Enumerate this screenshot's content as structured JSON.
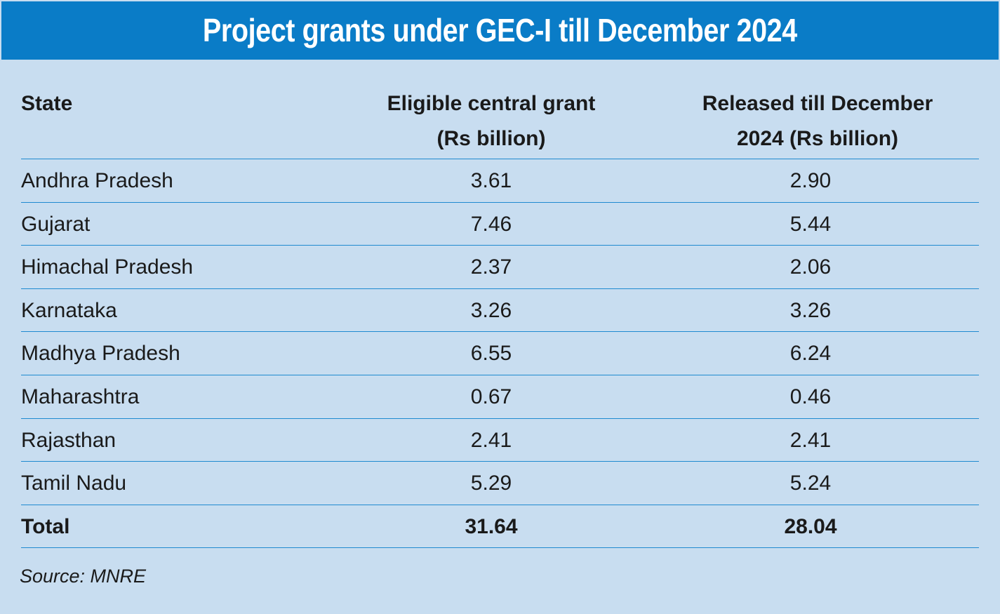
{
  "chart_data": {
    "type": "table",
    "title": "Project grants under GEC-I till December 2024",
    "columns": {
      "state": "State",
      "eligible_line1": "Eligible central grant",
      "eligible_line2": "(Rs billion)",
      "released_line1": "Released till December",
      "released_line2": "2024 (Rs billion)"
    },
    "rows": [
      {
        "state": "Andhra Pradesh",
        "eligible": "3.61",
        "released": "2.90"
      },
      {
        "state": "Gujarat",
        "eligible": "7.46",
        "released": "5.44"
      },
      {
        "state": "Himachal Pradesh",
        "eligible": "2.37",
        "released": "2.06"
      },
      {
        "state": "Karnataka",
        "eligible": "3.26",
        "released": "3.26"
      },
      {
        "state": "Madhya Pradesh",
        "eligible": "6.55",
        "released": "6.24"
      },
      {
        "state": "Maharashtra",
        "eligible": "0.67",
        "released": "0.46"
      },
      {
        "state": "Rajasthan",
        "eligible": "2.41",
        "released": "2.41"
      },
      {
        "state": "Tamil Nadu",
        "eligible": "5.29",
        "released": "5.24"
      }
    ],
    "total": {
      "label": "Total",
      "eligible": "31.64",
      "released": "28.04"
    },
    "source": "Source: MNRE"
  },
  "colors": {
    "title_bg": "#0a7cc7",
    "panel_bg": "#c8ddf0",
    "rule": "#1f8ad0",
    "text": "#1a1a1a"
  }
}
